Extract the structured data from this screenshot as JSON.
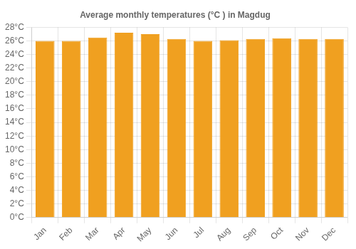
{
  "chart_data": {
    "type": "bar",
    "title": "Average monthly temperatures (°C ) in Magdug",
    "categories": [
      "Jan",
      "Feb",
      "Mar",
      "Apr",
      "May",
      "Jun",
      "Jul",
      "Aug",
      "Sep",
      "Oct",
      "Nov",
      "Dec"
    ],
    "values": [
      26.0,
      26.0,
      26.5,
      27.2,
      27.0,
      26.3,
      26.0,
      26.1,
      26.3,
      26.4,
      26.3,
      26.3
    ],
    "color": "#F0A020",
    "ylim": [
      0,
      28
    ],
    "yticks": [
      {
        "value": 0,
        "label": "0°C"
      },
      {
        "value": 2,
        "label": "2°C"
      },
      {
        "value": 4,
        "label": "4°C"
      },
      {
        "value": 6,
        "label": "6°C"
      },
      {
        "value": 8,
        "label": "8°C"
      },
      {
        "value": 10,
        "label": "10°C"
      },
      {
        "value": 12,
        "label": "12°C"
      },
      {
        "value": 14,
        "label": "14°C"
      },
      {
        "value": 16,
        "label": "16°C"
      },
      {
        "value": 18,
        "label": "18°C"
      },
      {
        "value": 20,
        "label": "20°C"
      },
      {
        "value": 22,
        "label": "22°C"
      },
      {
        "value": 24,
        "label": "24°C"
      },
      {
        "value": 26,
        "label": "26°C"
      },
      {
        "value": 28,
        "label": "28°C"
      }
    ],
    "grid": true
  }
}
